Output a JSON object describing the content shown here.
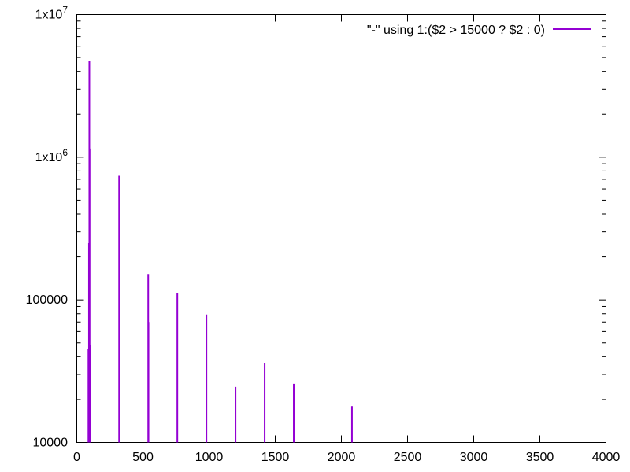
{
  "chart_data": {
    "type": "line",
    "title": "",
    "xlabel": "",
    "ylabel": "",
    "xlim": [
      0,
      4000
    ],
    "ylim": [
      10000,
      10000000
    ],
    "yscale": "log",
    "grid": false,
    "legend_placement": "top-right",
    "x_ticks": [
      0,
      500,
      1000,
      1500,
      2000,
      2500,
      3000,
      3500,
      4000
    ],
    "x_tick_labels": [
      "0",
      "500",
      "1000",
      "1500",
      "2000",
      "2500",
      "3000",
      "3500",
      "4000"
    ],
    "y_ticks": [
      10000,
      100000,
      1000000,
      10000000
    ],
    "y_tick_labels": [
      {
        "base": "10000",
        "exp": ""
      },
      {
        "base": "100000",
        "exp": ""
      },
      {
        "base": "1x10",
        "exp": "6"
      },
      {
        "base": "1x10",
        "exp": "7"
      }
    ],
    "series": [
      {
        "name": "\"-\" using 1:($2 > 15000 ? $2 : 0)",
        "color": "#9400d3",
        "spikes": [
          {
            "x": 88,
            "y": 45000
          },
          {
            "x": 92,
            "y": 250000
          },
          {
            "x": 95,
            "y": 4700000
          },
          {
            "x": 97,
            "y": 1150000
          },
          {
            "x": 100,
            "y": 48000
          },
          {
            "x": 103,
            "y": 35000
          },
          {
            "x": 320,
            "y": 740000
          },
          {
            "x": 322,
            "y": 700000
          },
          {
            "x": 540,
            "y": 152000
          },
          {
            "x": 542,
            "y": 70000
          },
          {
            "x": 760,
            "y": 111000
          },
          {
            "x": 980,
            "y": 79000
          },
          {
            "x": 1200,
            "y": 24500
          },
          {
            "x": 1420,
            "y": 36000
          },
          {
            "x": 1640,
            "y": 25800
          },
          {
            "x": 2080,
            "y": 18000
          }
        ]
      }
    ]
  }
}
